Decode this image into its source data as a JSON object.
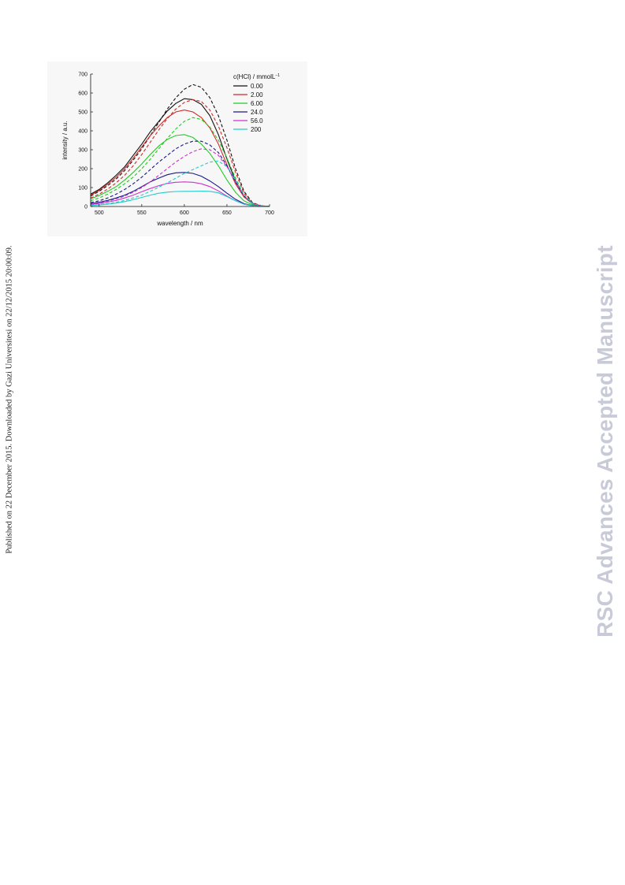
{
  "side_note": "Published on 22 December 2015. Downloaded by Gazi Universitesi on 22/12/2015 20:00:09.",
  "watermark": "RSC Advances Accepted Manuscript",
  "chart_data": {
    "type": "line",
    "xlabel": "wavelength / nm",
    "ylabel": "intensity / a.u.",
    "xlim": [
      490,
      700
    ],
    "ylim": [
      0,
      700
    ],
    "xticks": [
      500,
      550,
      600,
      650,
      700
    ],
    "yticks": [
      0,
      100,
      200,
      300,
      400,
      500,
      600,
      700
    ],
    "grid": false,
    "legend_title": "c(HCl) / mmolL",
    "legend_title_sup": "−1",
    "legend_position": "top-right",
    "series": [
      {
        "name": "0.00",
        "color": "#111111",
        "style": "solid",
        "x": [
          490,
          500,
          510,
          520,
          530,
          540,
          550,
          560,
          570,
          580,
          590,
          600,
          610,
          620,
          630,
          640,
          650,
          660,
          670,
          680,
          690,
          700
        ],
        "y": [
          65,
          90,
          125,
          165,
          210,
          270,
          330,
          395,
          450,
          505,
          545,
          570,
          565,
          540,
          480,
          380,
          250,
          135,
          55,
          15,
          3,
          0
        ]
      },
      {
        "name": "0.00",
        "color": "#111111",
        "style": "dashed",
        "x": [
          490,
          500,
          510,
          520,
          530,
          540,
          550,
          560,
          570,
          580,
          590,
          600,
          610,
          620,
          630,
          640,
          650,
          660,
          670,
          680,
          690,
          700
        ],
        "y": [
          55,
          80,
          110,
          145,
          190,
          245,
          305,
          375,
          445,
          515,
          575,
          620,
          645,
          630,
          575,
          480,
          350,
          200,
          80,
          20,
          4,
          0
        ]
      },
      {
        "name": "2.00",
        "color": "#d12a2a",
        "style": "solid",
        "x": [
          490,
          500,
          510,
          520,
          530,
          540,
          550,
          560,
          570,
          580,
          590,
          600,
          610,
          620,
          630,
          640,
          650,
          660,
          670,
          680,
          690,
          700
        ],
        "y": [
          60,
          85,
          118,
          155,
          200,
          255,
          315,
          375,
          425,
          470,
          500,
          510,
          500,
          470,
          415,
          330,
          220,
          120,
          50,
          14,
          3,
          0
        ]
      },
      {
        "name": "2.00",
        "color": "#d12a2a",
        "style": "dashed",
        "x": [
          490,
          500,
          510,
          520,
          530,
          540,
          550,
          560,
          570,
          580,
          590,
          600,
          610,
          620,
          630,
          640,
          650,
          660,
          670,
          680,
          690,
          700
        ],
        "y": [
          45,
          65,
          92,
          125,
          165,
          215,
          275,
          340,
          405,
          465,
          515,
          550,
          565,
          555,
          510,
          425,
          310,
          180,
          70,
          18,
          4,
          0
        ]
      },
      {
        "name": "6.00",
        "color": "#22cc22",
        "style": "solid",
        "x": [
          490,
          500,
          510,
          520,
          530,
          540,
          550,
          560,
          570,
          580,
          590,
          600,
          610,
          620,
          630,
          640,
          650,
          660,
          670,
          680,
          690,
          700
        ],
        "y": [
          40,
          58,
          80,
          105,
          140,
          180,
          225,
          275,
          320,
          355,
          375,
          380,
          365,
          330,
          280,
          215,
          140,
          75,
          30,
          8,
          2,
          0
        ]
      },
      {
        "name": "6.00",
        "color": "#22cc22",
        "style": "dashed",
        "x": [
          490,
          500,
          510,
          520,
          530,
          540,
          550,
          560,
          570,
          580,
          590,
          600,
          610,
          620,
          630,
          640,
          650,
          660,
          670,
          680,
          690,
          700
        ],
        "y": [
          30,
          45,
          65,
          90,
          120,
          155,
          200,
          250,
          305,
          360,
          410,
          450,
          470,
          460,
          420,
          350,
          255,
          150,
          60,
          15,
          3,
          0
        ]
      },
      {
        "name": "24.0",
        "color": "#1a1a8c",
        "style": "solid",
        "x": [
          490,
          500,
          510,
          520,
          530,
          540,
          550,
          560,
          570,
          580,
          590,
          600,
          610,
          620,
          630,
          640,
          650,
          660,
          670,
          680,
          690,
          700
        ],
        "y": [
          15,
          22,
          32,
          45,
          60,
          80,
          105,
          130,
          150,
          168,
          178,
          180,
          175,
          160,
          135,
          105,
          70,
          38,
          15,
          4,
          1,
          0
        ]
      },
      {
        "name": "24.0",
        "color": "#1a1a8c",
        "style": "dashed",
        "x": [
          490,
          500,
          510,
          520,
          530,
          540,
          550,
          560,
          570,
          580,
          590,
          600,
          610,
          620,
          630,
          640,
          650,
          660,
          670,
          680,
          690,
          700
        ],
        "y": [
          20,
          30,
          45,
          65,
          90,
          120,
          155,
          195,
          235,
          270,
          305,
          330,
          345,
          345,
          325,
          285,
          215,
          130,
          55,
          14,
          3,
          0
        ]
      },
      {
        "name": "56.0",
        "color": "#cc33cc",
        "style": "solid",
        "x": [
          490,
          500,
          510,
          520,
          530,
          540,
          550,
          560,
          570,
          580,
          590,
          600,
          610,
          620,
          630,
          640,
          650,
          660,
          670,
          680,
          690,
          700
        ],
        "y": [
          10,
          16,
          23,
          32,
          45,
          60,
          78,
          95,
          110,
          122,
          128,
          130,
          128,
          120,
          105,
          82,
          55,
          30,
          12,
          3,
          1,
          0
        ]
      },
      {
        "name": "56.0",
        "color": "#cc33cc",
        "style": "dashed",
        "x": [
          490,
          500,
          510,
          520,
          530,
          540,
          550,
          560,
          570,
          580,
          590,
          600,
          610,
          620,
          630,
          640,
          650,
          660,
          670,
          680,
          690,
          700
        ],
        "y": [
          12,
          18,
          27,
          40,
          55,
          75,
          100,
          130,
          165,
          200,
          235,
          265,
          290,
          305,
          300,
          270,
          210,
          130,
          55,
          14,
          3,
          0
        ]
      },
      {
        "name": "200",
        "color": "#22cccc",
        "style": "solid",
        "x": [
          490,
          500,
          510,
          520,
          530,
          540,
          550,
          560,
          570,
          580,
          590,
          600,
          610,
          620,
          630,
          640,
          650,
          660,
          670,
          680,
          690,
          700
        ],
        "y": [
          5,
          8,
          12,
          18,
          26,
          36,
          48,
          60,
          70,
          76,
          79,
          80,
          80,
          81,
          80,
          72,
          52,
          30,
          12,
          3,
          1,
          0
        ]
      },
      {
        "name": "200",
        "color": "#22cccc",
        "style": "dashed",
        "x": [
          490,
          500,
          510,
          520,
          530,
          540,
          550,
          560,
          570,
          580,
          590,
          600,
          610,
          620,
          630,
          640,
          650,
          660,
          670,
          680,
          690,
          700
        ],
        "y": [
          6,
          10,
          15,
          22,
          32,
          45,
          60,
          80,
          102,
          125,
          150,
          175,
          195,
          215,
          235,
          240,
          210,
          140,
          60,
          15,
          3,
          0
        ]
      }
    ]
  }
}
